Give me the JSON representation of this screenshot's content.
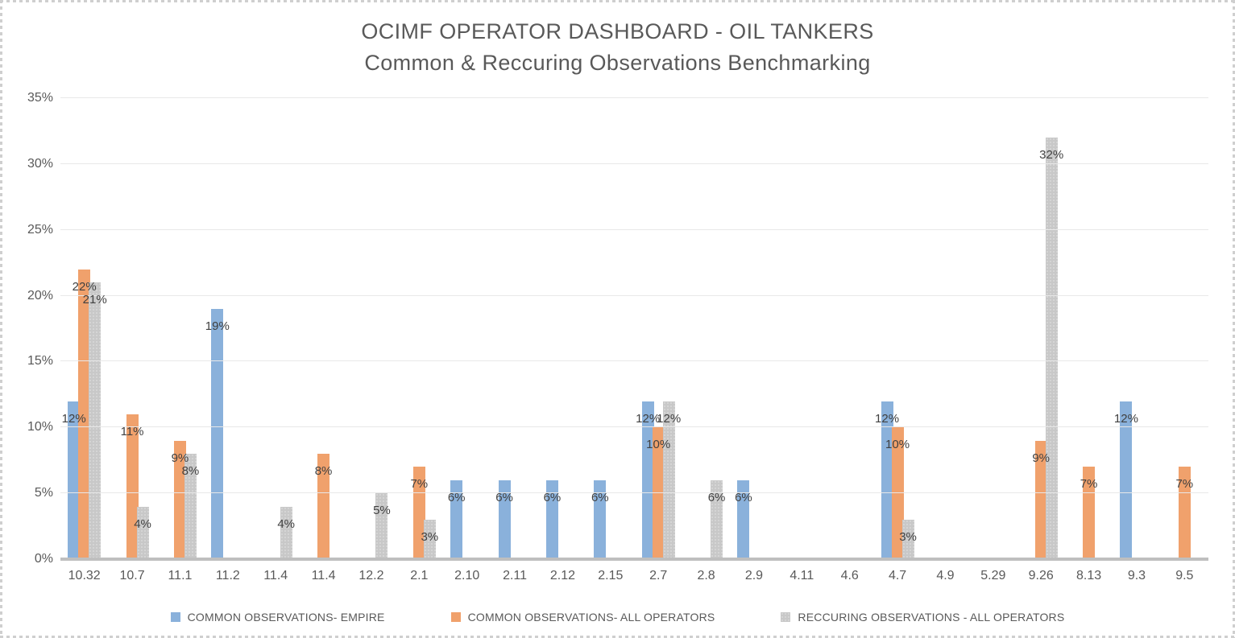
{
  "frame": {
    "selection_border_color": "#cfcfcf",
    "background": "#ffffff"
  },
  "chart_data": {
    "type": "bar",
    "title": "OCIMF OPERATOR DASHBOARD  - OIL TANKERS",
    "subtitle": "Common & Reccuring Observations Benchmarking",
    "categories": [
      "10.32",
      "10.7",
      "11.1",
      "11.2",
      "11.4",
      "11.4",
      "12.2",
      "2.1",
      "2.10",
      "2.11",
      "2.12",
      "2.15",
      "2.7",
      "2.8",
      "2.9",
      "4.11",
      "4.6",
      "4.7",
      "4.9",
      "5.29",
      "9.26",
      "8.13",
      "9.3",
      "9.5"
    ],
    "series": [
      {
        "name": "COMMON OBSERVATIONS- EMPIRE",
        "color": "#8ab1db",
        "textured": false,
        "values": [
          12,
          null,
          null,
          19,
          null,
          null,
          null,
          null,
          6,
          6,
          6,
          6,
          12,
          null,
          6,
          null,
          null,
          12,
          null,
          null,
          null,
          null,
          12,
          null
        ]
      },
      {
        "name": "COMMON OBSERVATIONS- ALL OPERATORS",
        "color": "#f0a16c",
        "textured": false,
        "values": [
          22,
          11,
          9,
          null,
          null,
          8,
          null,
          7,
          null,
          null,
          null,
          null,
          10,
          null,
          null,
          null,
          null,
          10,
          null,
          null,
          9,
          7,
          null,
          7
        ]
      },
      {
        "name": "RECCURING OBSERVATIONS - ALL OPERATORS",
        "color": "#c8c8c8",
        "textured": true,
        "values": [
          21,
          4,
          8,
          null,
          4,
          null,
          5,
          3,
          null,
          null,
          null,
          null,
          12,
          6,
          null,
          null,
          null,
          3,
          null,
          null,
          32,
          null,
          null,
          null
        ]
      }
    ],
    "data_label_suffix": "%",
    "ylim": [
      0,
      35
    ],
    "y_ticks": [
      "0%",
      "5%",
      "10%",
      "15%",
      "20%",
      "25%",
      "30%",
      "35%"
    ],
    "grid": true,
    "gridline_color": "#e8e8e8",
    "axis_line_color": "#bfbfbf",
    "legend_position": "bottom",
    "text_color": "#595959",
    "label_color": "#404040"
  }
}
